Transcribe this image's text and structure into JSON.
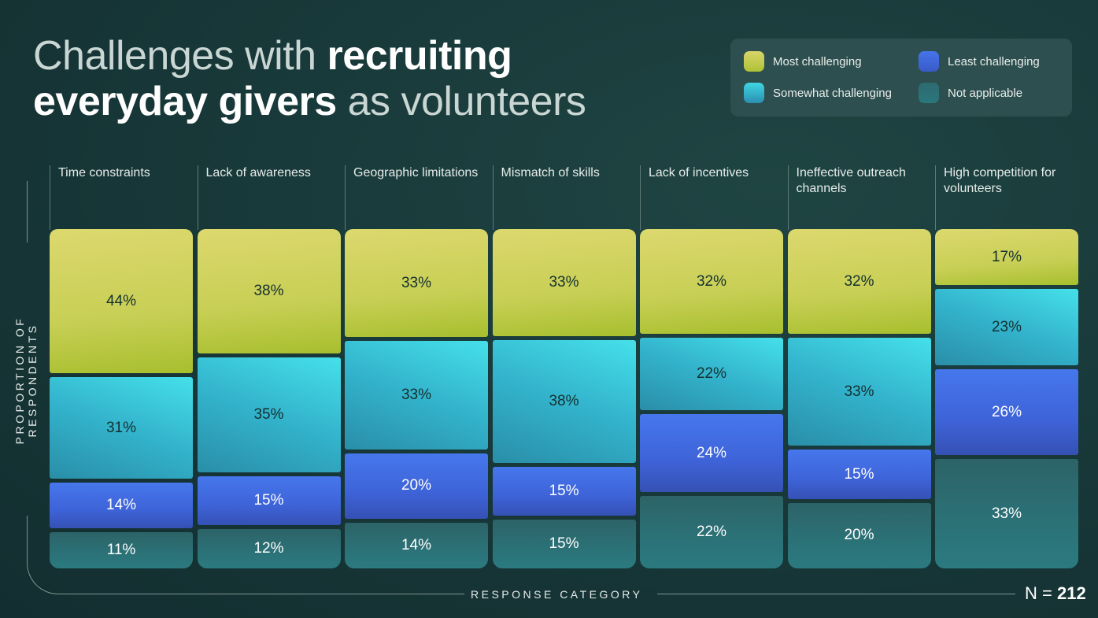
{
  "title": {
    "part1": "Challenges with ",
    "part2": "recruiting",
    "part3": "everyday givers",
    "part4": " as volunteers"
  },
  "legend": [
    {
      "label": "Most challenging",
      "color": "#cdd055"
    },
    {
      "label": "Somewhat challenging",
      "color": "#33b9d0"
    },
    {
      "label": "Least challenging",
      "color": "#4169e0"
    },
    {
      "label": "Not applicable",
      "color": "#2e6e72"
    }
  ],
  "chart_data": {
    "type": "bar",
    "stacked": "100%-mosaic",
    "xlabel": "RESPONSE CATEGORY",
    "ylabel": "PROPORTION OF RESPONDENTS",
    "note": "N = 212",
    "categories": [
      "Time constraints",
      "Lack of awareness",
      "Geographic limitations",
      "Mismatch of skills",
      "Lack of incentives",
      "Ineffective outreach channels",
      "High competition for volunteers"
    ],
    "series": [
      {
        "name": "Most challenging",
        "values": [
          44,
          38,
          33,
          33,
          32,
          32,
          17
        ]
      },
      {
        "name": "Somewhat challenging",
        "values": [
          31,
          35,
          33,
          38,
          22,
          33,
          23
        ]
      },
      {
        "name": "Least challenging",
        "values": [
          14,
          15,
          20,
          15,
          24,
          15,
          26
        ]
      },
      {
        "name": "Not applicable",
        "values": [
          11,
          12,
          14,
          15,
          22,
          20,
          33
        ]
      }
    ]
  },
  "n_label": {
    "prefix": "N = ",
    "value": "212"
  }
}
